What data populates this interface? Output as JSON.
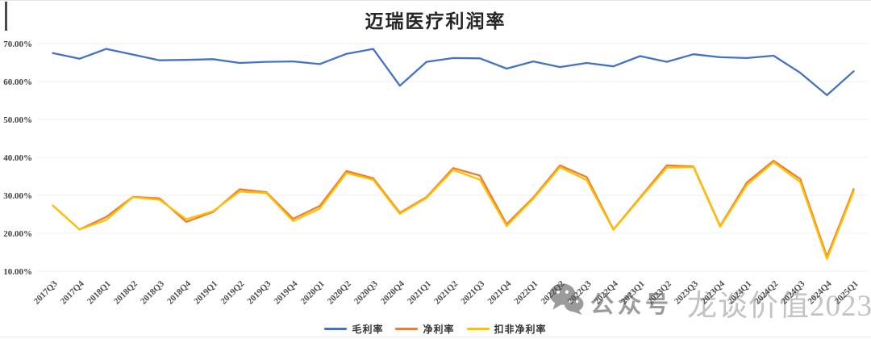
{
  "title": "迈瑞医疗利润率",
  "watermark": {
    "icon": "wechat-icon",
    "prefix": "公众号",
    "name": "龙谈价值2023"
  },
  "legend": [
    {
      "id": "gross_margin",
      "label": "毛利率",
      "color": "#4472C4"
    },
    {
      "id": "net_margin",
      "label": "净利率",
      "color": "#ED7D31"
    },
    {
      "id": "non_gaap_net_margin",
      "label": "扣非净利率",
      "color": "#FFC000"
    }
  ],
  "colors": {
    "gridline": "#EFEFEF",
    "y_tick_text": "#3F3F3F",
    "x_tick_text": "#4D4D4D",
    "watermark_dark": "#9B9B9B",
    "watermark_light": "#C3C3C3"
  },
  "chart_data": {
    "type": "line",
    "title": "迈瑞医疗利润率",
    "xlabel": "",
    "ylabel": "",
    "grid": true,
    "legend_position": "bottom",
    "ylim": [
      10,
      70
    ],
    "yticks": [
      {
        "value": 70,
        "label": "70.00%"
      },
      {
        "value": 60,
        "label": "60.00%"
      },
      {
        "value": 50,
        "label": "50.00%"
      },
      {
        "value": 40,
        "label": "40.00%"
      },
      {
        "value": 30,
        "label": "30.00%"
      },
      {
        "value": 20,
        "label": "20.00%"
      },
      {
        "value": 10,
        "label": "10.00%"
      }
    ],
    "categories": [
      "2017Q3",
      "2017Q4",
      "2018Q1",
      "2018Q2",
      "2018Q3",
      "2018Q4",
      "2019Q1",
      "2019Q2",
      "2019Q3",
      "2019Q4",
      "2020Q1",
      "2020Q2",
      "2020Q3",
      "2020Q4",
      "2021Q1",
      "2021Q2",
      "2021Q3",
      "2021Q4",
      "2022Q1",
      "2022Q2",
      "2022Q3",
      "2022Q4",
      "2023Q1",
      "2023Q2",
      "2023Q3",
      "2023Q4",
      "2024Q1",
      "2024Q2",
      "2024Q3",
      "2024Q4",
      "2025Q1"
    ],
    "series": [
      {
        "id": "gross_margin",
        "name": "毛利率",
        "color": "#4472C4",
        "values": [
          67.5,
          66.0,
          68.6,
          67.1,
          65.6,
          65.7,
          65.9,
          64.9,
          65.2,
          65.3,
          64.6,
          67.3,
          68.6,
          58.9,
          65.2,
          66.2,
          66.1,
          63.4,
          65.3,
          63.8,
          64.9,
          64.0,
          66.7,
          65.2,
          67.2,
          66.4,
          66.2,
          66.8,
          62.3,
          56.4,
          62.7
        ]
      },
      {
        "id": "net_margin",
        "name": "净利率",
        "color": "#ED7D31",
        "values": [
          27.3,
          21.0,
          24.3,
          29.6,
          29.2,
          23.0,
          25.6,
          31.6,
          30.8,
          23.8,
          27.2,
          36.4,
          34.5,
          25.4,
          29.5,
          37.2,
          35.2,
          22.4,
          29.4,
          37.9,
          34.8,
          21.0,
          29.4,
          37.9,
          37.6,
          21.9,
          33.4,
          39.1,
          34.3,
          13.8,
          31.6
        ]
      },
      {
        "id": "non_gaap_net_margin",
        "name": "扣非净利率",
        "color": "#FFC000",
        "values": [
          27.3,
          21.0,
          23.5,
          29.5,
          28.8,
          23.7,
          25.8,
          31.0,
          30.6,
          23.2,
          26.5,
          35.9,
          34.1,
          25.1,
          29.3,
          36.7,
          34.1,
          21.9,
          29.1,
          37.4,
          34.0,
          20.9,
          29.2,
          37.3,
          37.4,
          21.7,
          32.7,
          38.7,
          33.5,
          13.2,
          31.0
        ]
      }
    ]
  }
}
